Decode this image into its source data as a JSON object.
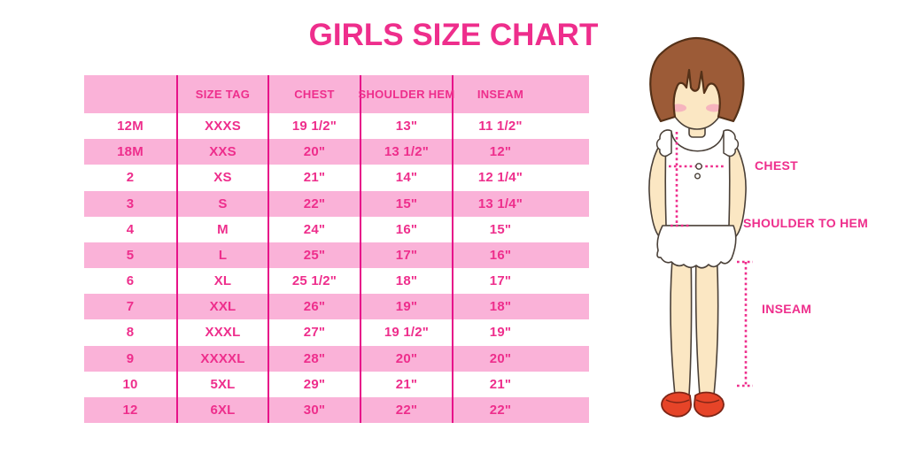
{
  "title": "GIRLS SIZE CHART",
  "colors": {
    "accent": "#EE2E8C",
    "row_pink": "#FAB2D8",
    "line_pink": "#E71289",
    "hair": "#9C5B37",
    "skin": "#FBE7C3",
    "blush": "#F5A7BD",
    "shoes": "#E64428",
    "outline": "#4A4038"
  },
  "chart_data": {
    "type": "table",
    "title": "GIRLS SIZE CHART",
    "columns": [
      "",
      "SIZE TAG",
      "CHEST",
      "SHOULDER HEM",
      "INSEAM"
    ],
    "rows": [
      [
        "12M",
        "XXXS",
        "19 1/2\"",
        "13\"",
        "11 1/2\""
      ],
      [
        "18M",
        "XXS",
        "20\"",
        "13 1/2\"",
        "12\""
      ],
      [
        "2",
        "XS",
        "21\"",
        "14\"",
        "12 1/4\""
      ],
      [
        "3",
        "S",
        "22\"",
        "15\"",
        "13 1/4\""
      ],
      [
        "4",
        "M",
        "24\"",
        "16\"",
        "15\""
      ],
      [
        "5",
        "L",
        "25\"",
        "17\"",
        "16\""
      ],
      [
        "6",
        "XL",
        "25 1/2\"",
        "18\"",
        "17\""
      ],
      [
        "7",
        "XXL",
        "26\"",
        "19\"",
        "18\""
      ],
      [
        "8",
        "XXXL",
        "27\"",
        "19 1/2\"",
        "19\""
      ],
      [
        "9",
        "XXXXL",
        "28\"",
        "20\"",
        "20\""
      ],
      [
        "10",
        "5XL",
        "29\"",
        "21\"",
        "21\""
      ],
      [
        "12",
        "6XL",
        "30\"",
        "22\"",
        "22\""
      ]
    ]
  },
  "figure": {
    "labels": {
      "chest": "CHEST",
      "shoulder_to_hem": "SHOULDER TO HEM",
      "inseam": "INSEAM"
    }
  }
}
